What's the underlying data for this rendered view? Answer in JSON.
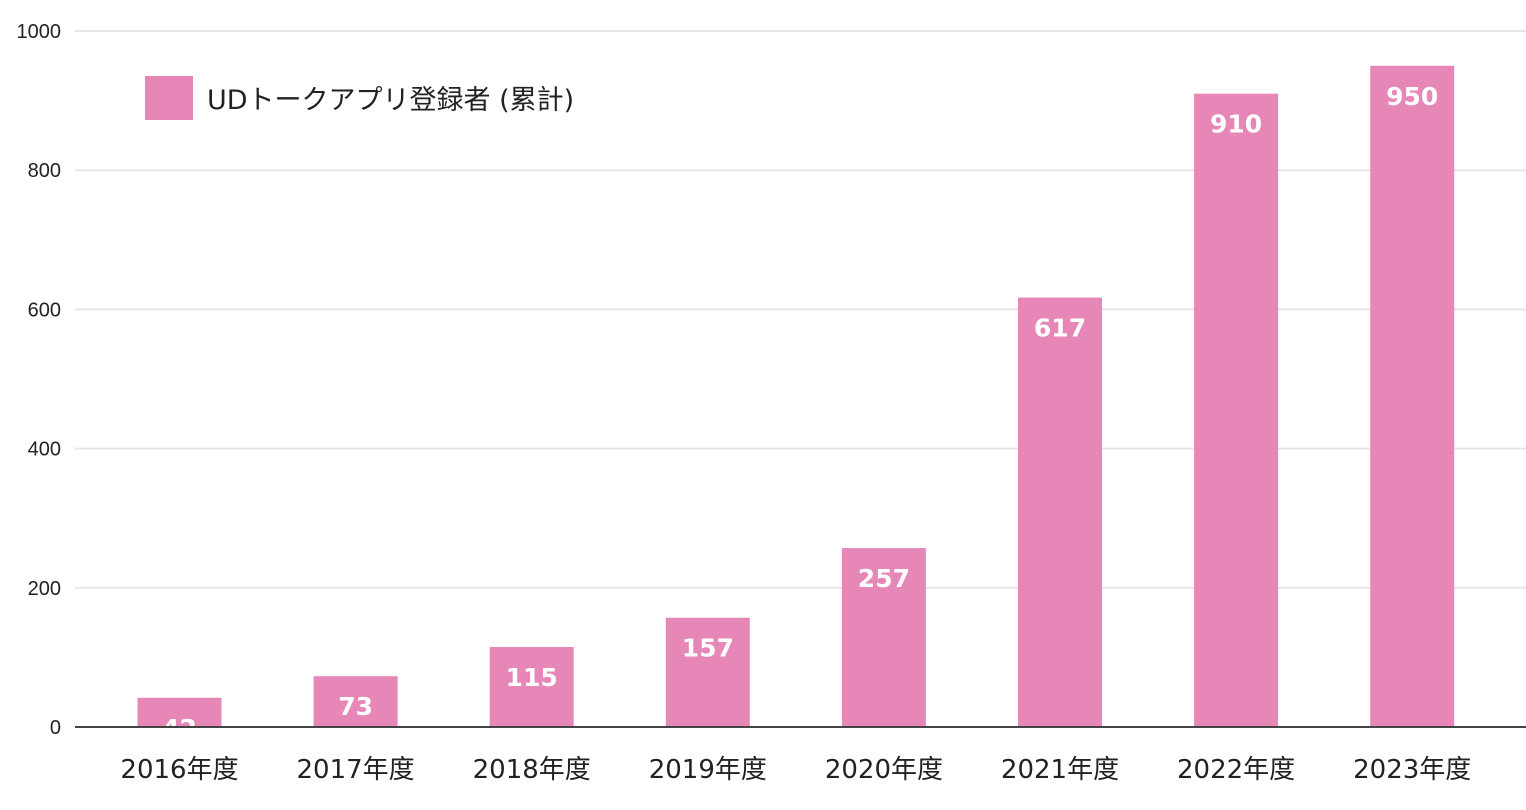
{
  "chart_data": {
    "type": "bar",
    "categories": [
      "2016年度",
      "2017年度",
      "2018年度",
      "2019年度",
      "2020年度",
      "2021年度",
      "2022年度",
      "2023年度"
    ],
    "series": [
      {
        "name": "UDトークアプリ登録者 (累計)",
        "values": [
          42,
          73,
          115,
          157,
          257,
          617,
          910,
          950
        ]
      }
    ],
    "ylim": [
      0,
      1000
    ],
    "yticks": [
      0,
      200,
      400,
      600,
      800,
      1000
    ],
    "data_labels": true,
    "grid": true,
    "legend_position": "top-left",
    "colors": {
      "bar": "#e687b8",
      "grid": "#e6e6e6",
      "axis": "#444444",
      "text": "#222222",
      "data_label": "#ffffff"
    }
  }
}
